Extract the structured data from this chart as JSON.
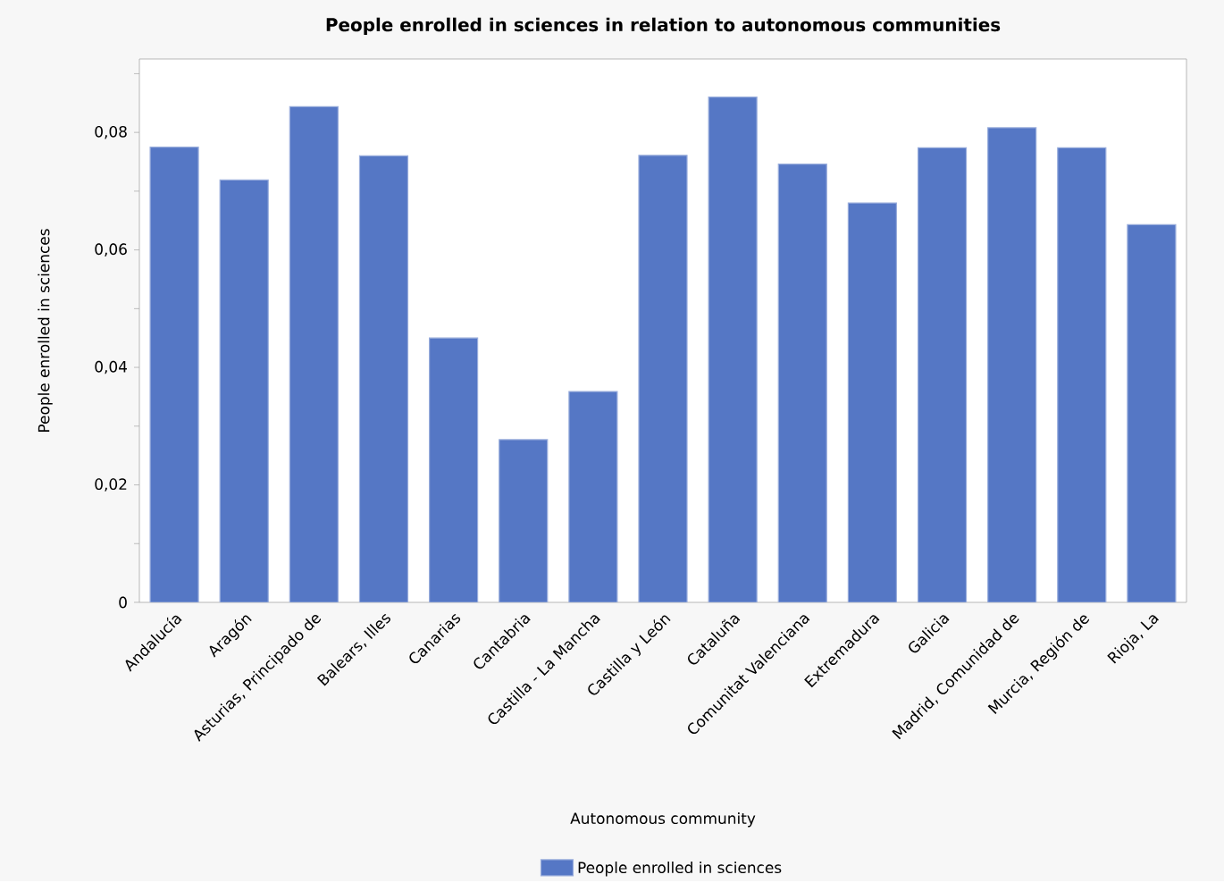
{
  "chart_data": {
    "type": "bar",
    "title": "People enrolled in sciences in relation to autonomous communities",
    "xlabel": "Autonomous community",
    "ylabel": "People enrolled in sciences",
    "categories": [
      "Andalucía",
      "Aragón",
      "Asturias, Principado de",
      "Balears, Illes",
      "Canarias",
      "Cantabria",
      "Castilla - La Mancha",
      "Castilla y León",
      "Cataluña",
      "Comunitat Valenciana",
      "Extremadura",
      "Galicia",
      "Madrid, Comunidad de",
      "Murcia, Región de",
      "Rioja, La"
    ],
    "series": [
      {
        "name": "People enrolled in sciences",
        "color": "#5577c5",
        "values": [
          0.0775,
          0.0719,
          0.0844,
          0.076,
          0.045,
          0.0277,
          0.0359,
          0.0761,
          0.086,
          0.0746,
          0.068,
          0.0774,
          0.0808,
          0.0774,
          0.0643
        ]
      }
    ],
    "ylim": [
      0,
      0.0925
    ],
    "yticks": [
      0,
      {
        "value": 0.01,
        "label": null
      },
      {
        "value": 0.02,
        "label": "0,02"
      },
      {
        "value": 0.03,
        "label": null
      },
      {
        "value": 0.04,
        "label": "0,04"
      },
      {
        "value": 0.05,
        "label": null
      },
      {
        "value": 0.06,
        "label": "0,06"
      },
      {
        "value": 0.07,
        "label": null
      },
      {
        "value": 0.08,
        "label": "0,08"
      },
      {
        "value": 0.09,
        "label": null
      }
    ],
    "grid": false,
    "legend": "bottom"
  }
}
